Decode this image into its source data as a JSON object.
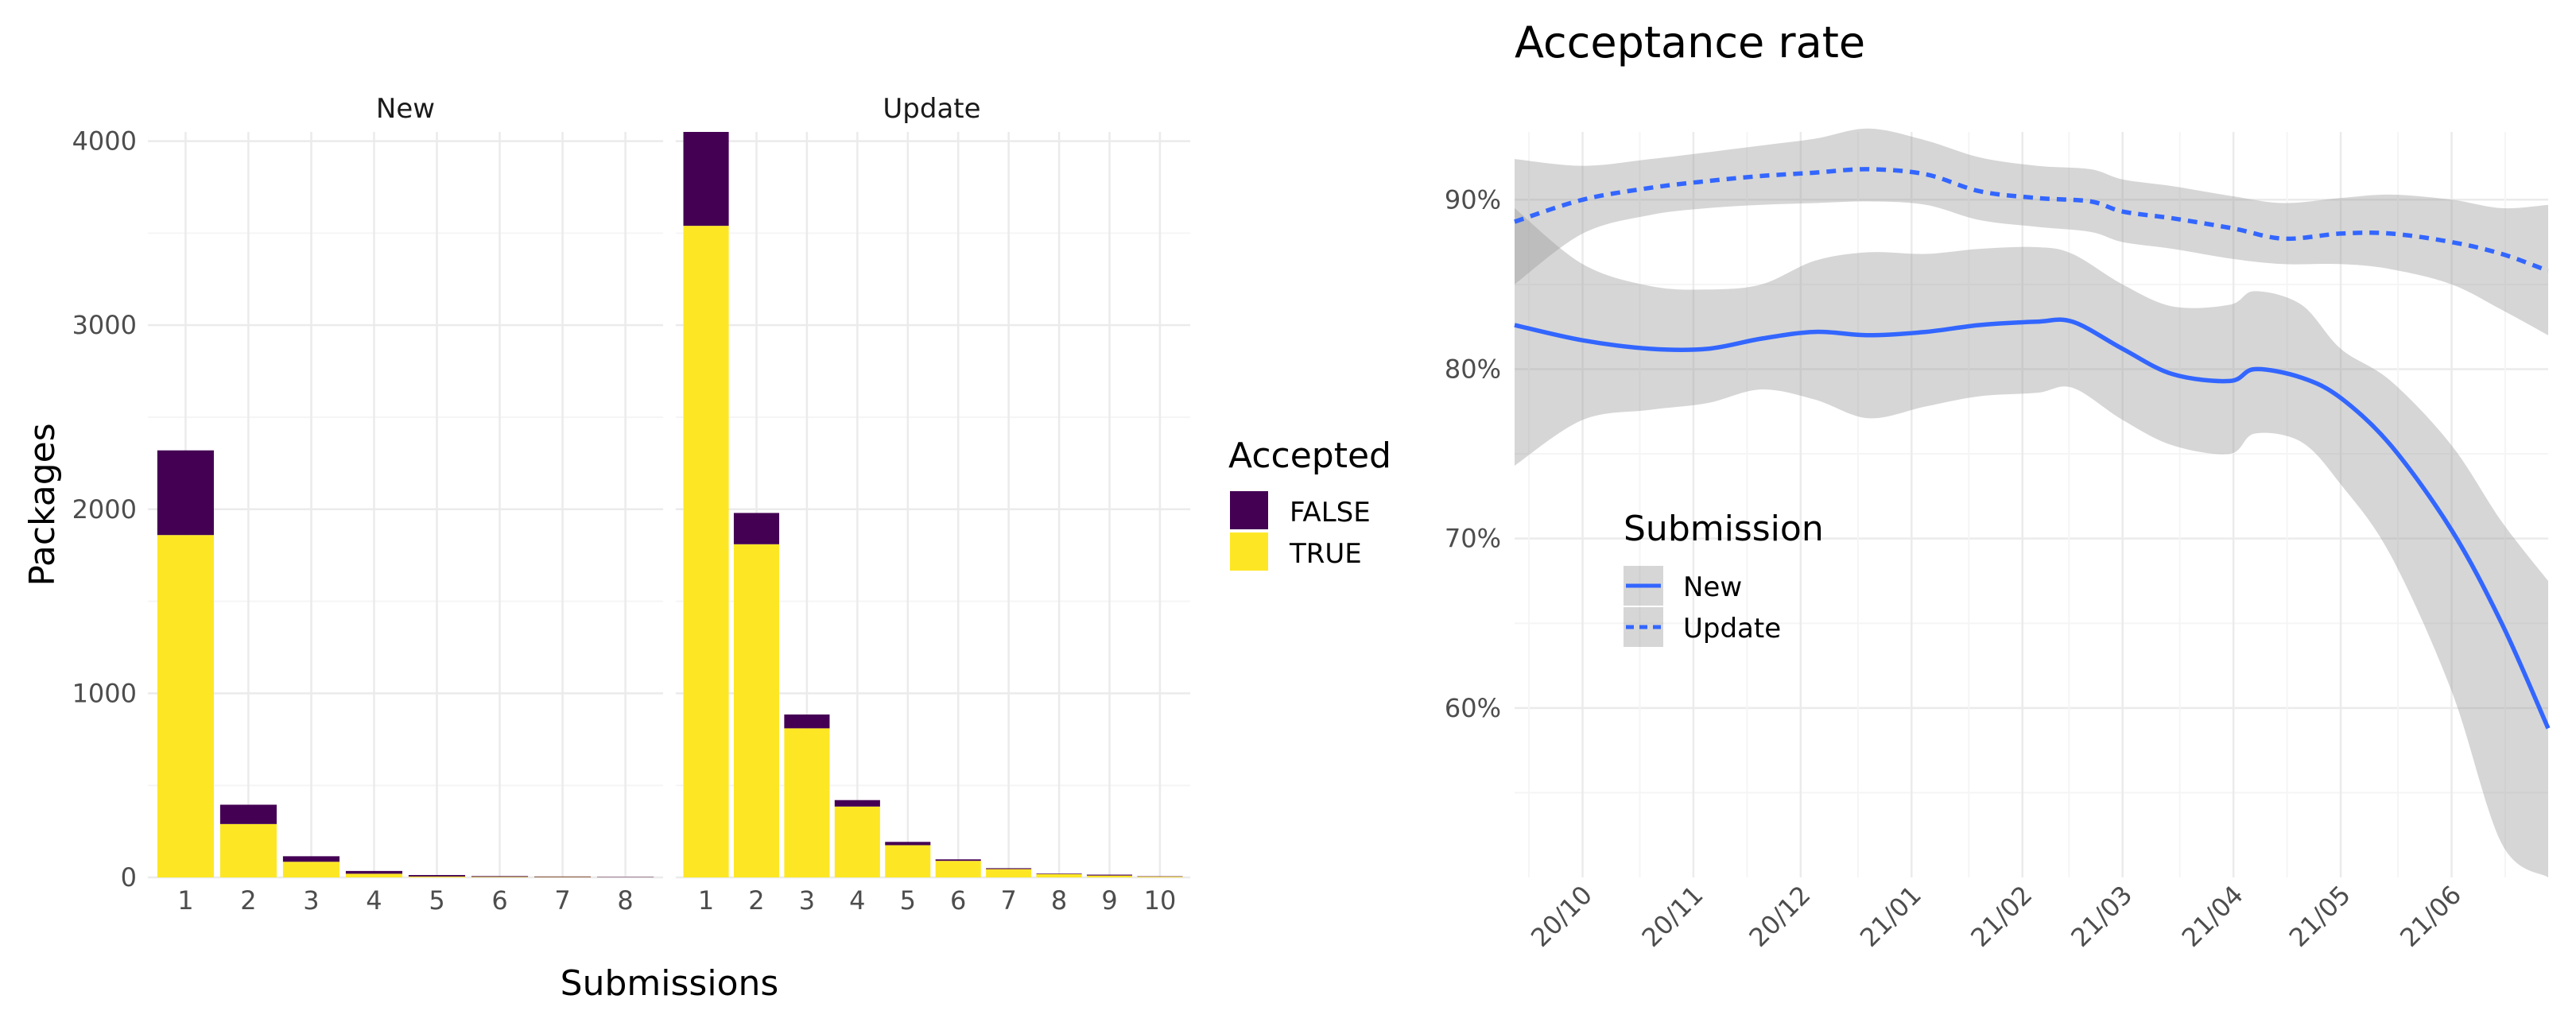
{
  "colors": {
    "accepted_false": "#440154",
    "accepted_true": "#FDE725",
    "line": "#3366FF",
    "ribbon": "#999999",
    "grid_major": "#EBEBEB",
    "grid_minor": "#F5F5F5"
  },
  "chart_data": [
    {
      "type": "bar",
      "stacked": true,
      "facets": [
        "New",
        "Update"
      ],
      "xlabel": "Submissions",
      "ylabel": "Packages",
      "ylim": [
        0,
        4050
      ],
      "yticks": [
        0,
        1000,
        2000,
        3000,
        4000
      ],
      "legend": {
        "title": "Accepted",
        "placement": "right",
        "entries": [
          "FALSE",
          "TRUE"
        ]
      },
      "panels": [
        {
          "facet": "New",
          "categories": [
            "1",
            "2",
            "3",
            "4",
            "5",
            "6",
            "7",
            "8"
          ],
          "series": [
            {
              "name": "TRUE",
              "values": [
                1860,
                290,
                85,
                20,
                5,
                3,
                2,
                1
              ]
            },
            {
              "name": "FALSE",
              "values": [
                460,
                105,
                30,
                15,
                8,
                4,
                3,
                2
              ]
            }
          ]
        },
        {
          "facet": "Update",
          "categories": [
            "1",
            "2",
            "3",
            "4",
            "5",
            "6",
            "7",
            "8",
            "9",
            "10"
          ],
          "series": [
            {
              "name": "TRUE",
              "values": [
                3540,
                1810,
                810,
                385,
                175,
                90,
                45,
                18,
                10,
                4
              ]
            },
            {
              "name": "FALSE",
              "values": [
                510,
                170,
                75,
                35,
                18,
                8,
                5,
                3,
                5,
                2
              ]
            }
          ]
        }
      ]
    },
    {
      "type": "line",
      "title": "Acceptance rate",
      "xlabel": "",
      "ylabel": "",
      "x_ticks": [
        "20/10",
        "20/11",
        "20/12",
        "21/01",
        "21/02",
        "21/03",
        "21/04",
        "21/05",
        "21/06"
      ],
      "xlim": [
        "2020-09-12",
        "2021-06-28"
      ],
      "ylim": [
        0.5,
        0.94
      ],
      "yticks": [
        0.6,
        0.7,
        0.8,
        0.9
      ],
      "ytick_labels": [
        "60%",
        "70%",
        "80%",
        "90%"
      ],
      "legend": {
        "title": "Submission",
        "placement": "left-inside",
        "entries": [
          "New",
          "Update"
        ]
      },
      "series": [
        {
          "name": "New",
          "style": "solid",
          "x": [
            "2020-09-12",
            "2020-10-01",
            "2020-10-20",
            "2020-11-05",
            "2020-11-20",
            "2020-12-05",
            "2020-12-20",
            "2021-01-05",
            "2021-01-20",
            "2021-02-05",
            "2021-02-15",
            "2021-03-01",
            "2021-03-15",
            "2021-03-31",
            "2021-04-07",
            "2021-04-20",
            "2021-05-01",
            "2021-05-15",
            "2021-06-01",
            "2021-06-15",
            "2021-06-28"
          ],
          "y": [
            0.826,
            0.817,
            0.812,
            0.812,
            0.818,
            0.822,
            0.82,
            0.822,
            0.826,
            0.828,
            0.828,
            0.812,
            0.797,
            0.793,
            0.8,
            0.795,
            0.783,
            0.755,
            0.705,
            0.65,
            0.588
          ],
          "lower": [
            0.743,
            0.77,
            0.776,
            0.78,
            0.788,
            0.782,
            0.771,
            0.778,
            0.784,
            0.786,
            0.789,
            0.77,
            0.755,
            0.75,
            0.762,
            0.757,
            0.732,
            0.69,
            0.61,
            0.52,
            0.5
          ],
          "upper": [
            0.895,
            0.862,
            0.849,
            0.847,
            0.85,
            0.864,
            0.869,
            0.868,
            0.871,
            0.872,
            0.868,
            0.85,
            0.837,
            0.838,
            0.846,
            0.838,
            0.812,
            0.793,
            0.755,
            0.71,
            0.675
          ]
        },
        {
          "name": "Update",
          "style": "dashed",
          "x": [
            "2020-09-12",
            "2020-10-01",
            "2020-10-20",
            "2020-11-05",
            "2020-11-20",
            "2020-12-05",
            "2020-12-20",
            "2021-01-05",
            "2021-01-20",
            "2021-02-05",
            "2021-02-20",
            "2021-03-01",
            "2021-03-15",
            "2021-04-01",
            "2021-04-15",
            "2021-05-01",
            "2021-05-15",
            "2021-06-01",
            "2021-06-15",
            "2021-06-28"
          ],
          "y": [
            0.887,
            0.9,
            0.907,
            0.911,
            0.914,
            0.916,
            0.918,
            0.915,
            0.905,
            0.901,
            0.899,
            0.893,
            0.889,
            0.883,
            0.877,
            0.88,
            0.88,
            0.875,
            0.868,
            0.858
          ],
          "lower": [
            0.85,
            0.88,
            0.891,
            0.895,
            0.897,
            0.898,
            0.899,
            0.897,
            0.888,
            0.884,
            0.881,
            0.875,
            0.871,
            0.865,
            0.862,
            0.862,
            0.859,
            0.85,
            0.835,
            0.82
          ],
          "upper": [
            0.924,
            0.92,
            0.924,
            0.928,
            0.932,
            0.936,
            0.942,
            0.935,
            0.925,
            0.92,
            0.918,
            0.912,
            0.908,
            0.902,
            0.898,
            0.901,
            0.903,
            0.9,
            0.895,
            0.897
          ]
        }
      ]
    }
  ]
}
